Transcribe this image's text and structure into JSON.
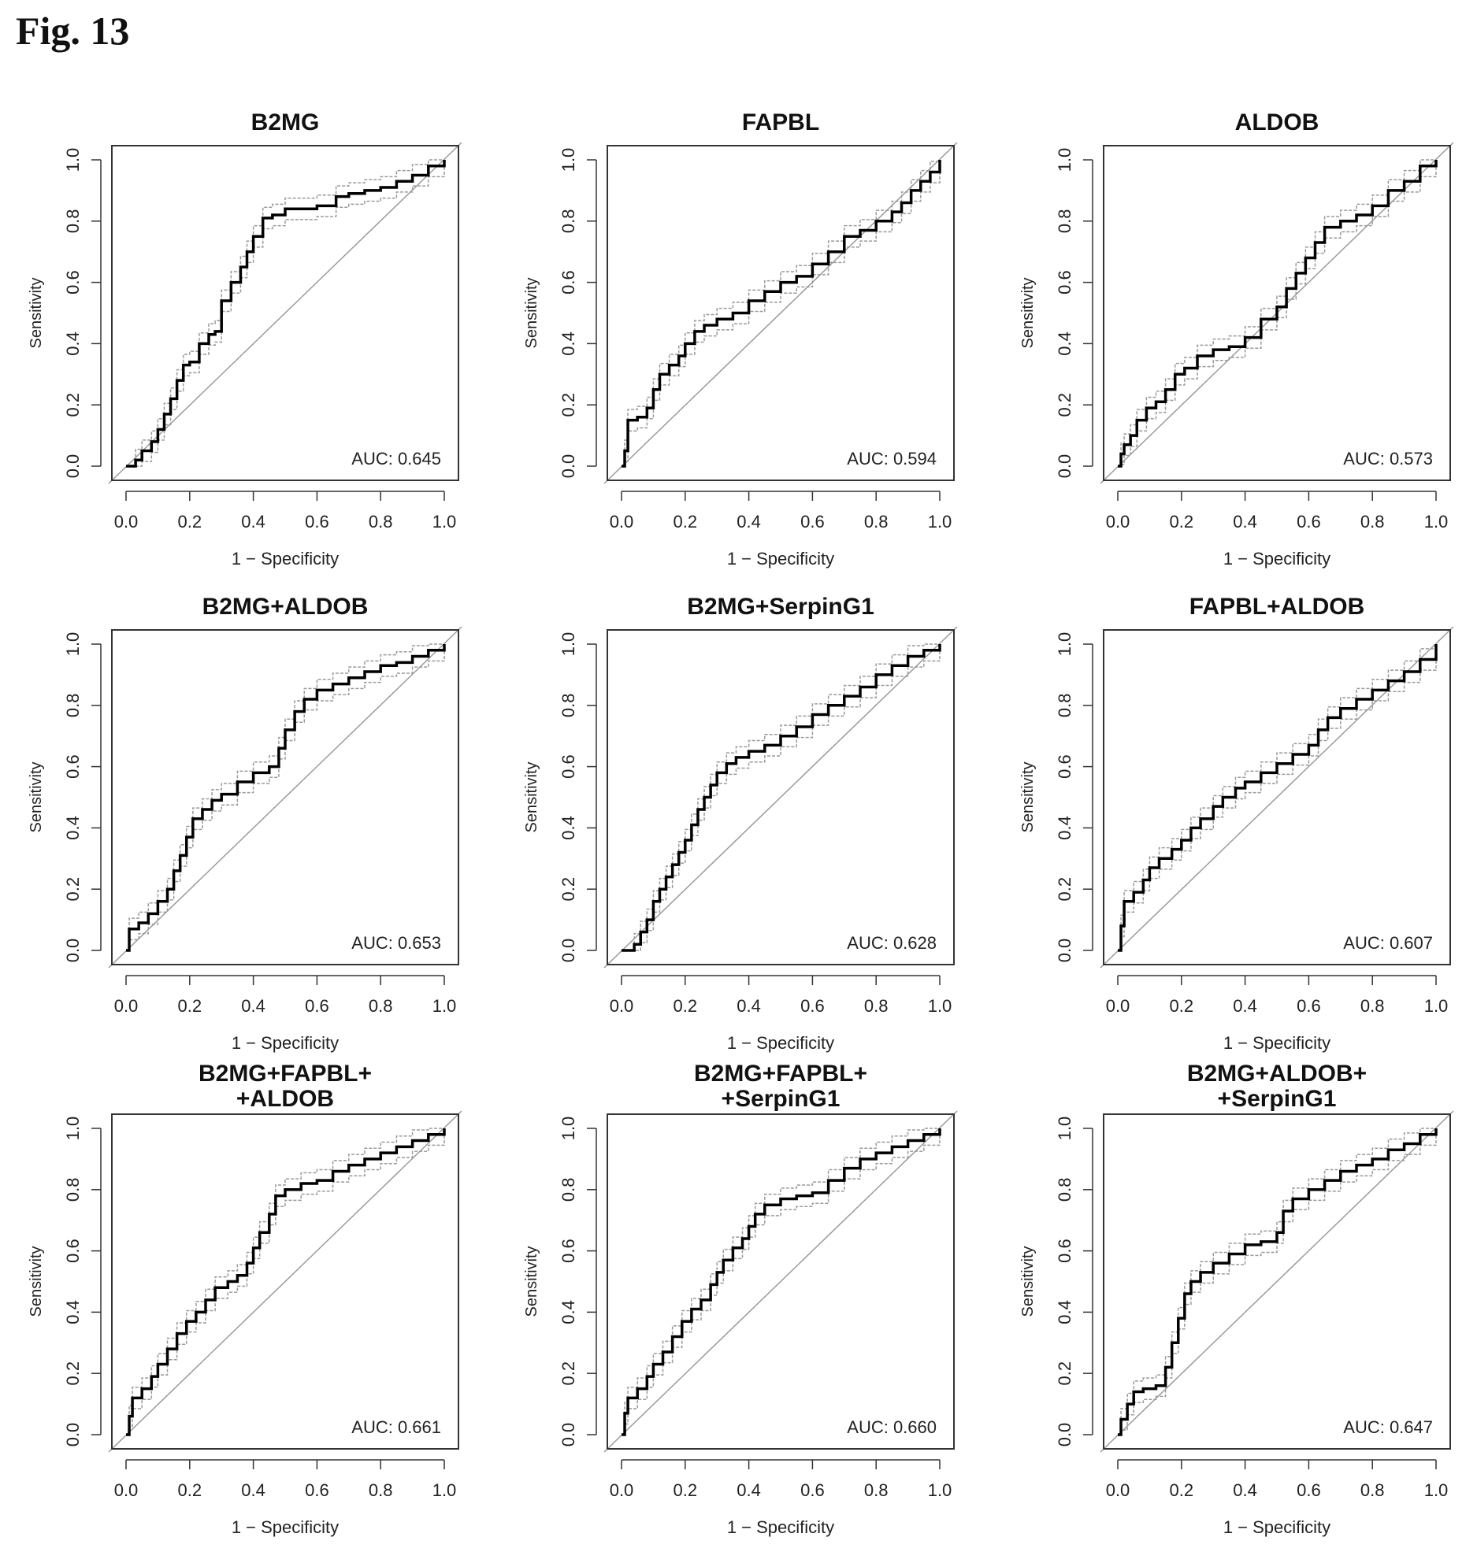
{
  "figure_label": "Fig. 13",
  "colors": {
    "roc": "#000000",
    "ci": "#9a9a9a",
    "diagonal": "#9a9a9a",
    "axis": "#333333"
  },
  "chart_data": [
    {
      "type": "line",
      "title": "B2MG",
      "xlabel": "1 − Specificity",
      "ylabel": "Sensitivity",
      "xlim": [
        0,
        1
      ],
      "ylim": [
        0,
        1
      ],
      "ticks": [
        "0.0",
        "0.2",
        "0.4",
        "0.6",
        "0.8",
        "1.0"
      ],
      "auc_label": "AUC: 0.645",
      "x": [
        0,
        0.03,
        0.05,
        0.08,
        0.1,
        0.12,
        0.14,
        0.16,
        0.18,
        0.2,
        0.23,
        0.26,
        0.28,
        0.3,
        0.33,
        0.36,
        0.38,
        0.4,
        0.43,
        0.46,
        0.5,
        0.55,
        0.6,
        0.66,
        0.7,
        0.75,
        0.8,
        0.85,
        0.9,
        0.95,
        1.0
      ],
      "y": [
        0,
        0.02,
        0.05,
        0.08,
        0.12,
        0.17,
        0.22,
        0.28,
        0.33,
        0.34,
        0.4,
        0.43,
        0.44,
        0.54,
        0.6,
        0.65,
        0.7,
        0.75,
        0.81,
        0.82,
        0.84,
        0.84,
        0.85,
        0.88,
        0.89,
        0.9,
        0.91,
        0.93,
        0.95,
        0.98,
        1.0
      ]
    },
    {
      "type": "line",
      "title": "FAPBL",
      "xlabel": "1 − Specificity",
      "ylabel": "Sensitivity",
      "xlim": [
        0,
        1
      ],
      "ylim": [
        0,
        1
      ],
      "ticks": [
        "0.0",
        "0.2",
        "0.4",
        "0.6",
        "0.8",
        "1.0"
      ],
      "auc_label": "AUC: 0.594",
      "x": [
        0,
        0.01,
        0.02,
        0.05,
        0.08,
        0.1,
        0.12,
        0.15,
        0.18,
        0.2,
        0.23,
        0.26,
        0.3,
        0.35,
        0.4,
        0.45,
        0.5,
        0.55,
        0.6,
        0.65,
        0.7,
        0.75,
        0.8,
        0.85,
        0.88,
        0.91,
        0.94,
        0.97,
        1.0
      ],
      "y": [
        0,
        0.05,
        0.15,
        0.16,
        0.19,
        0.25,
        0.3,
        0.33,
        0.36,
        0.4,
        0.44,
        0.46,
        0.48,
        0.5,
        0.54,
        0.57,
        0.6,
        0.62,
        0.66,
        0.7,
        0.75,
        0.77,
        0.8,
        0.83,
        0.86,
        0.9,
        0.93,
        0.96,
        1.0
      ]
    },
    {
      "type": "line",
      "title": "ALDOB",
      "xlabel": "1 − Specificity",
      "ylabel": "Sensitivity",
      "xlim": [
        0,
        1
      ],
      "ylim": [
        0,
        1
      ],
      "ticks": [
        "0.0",
        "0.2",
        "0.4",
        "0.6",
        "0.8",
        "1.0"
      ],
      "auc_label": "AUC: 0.573",
      "x": [
        0,
        0.01,
        0.02,
        0.04,
        0.06,
        0.09,
        0.12,
        0.15,
        0.18,
        0.21,
        0.25,
        0.3,
        0.35,
        0.4,
        0.45,
        0.5,
        0.53,
        0.56,
        0.59,
        0.62,
        0.65,
        0.7,
        0.75,
        0.8,
        0.85,
        0.9,
        0.95,
        1.0
      ],
      "y": [
        0,
        0.04,
        0.07,
        0.1,
        0.15,
        0.19,
        0.21,
        0.25,
        0.3,
        0.32,
        0.36,
        0.38,
        0.39,
        0.42,
        0.48,
        0.52,
        0.58,
        0.63,
        0.68,
        0.73,
        0.78,
        0.8,
        0.82,
        0.85,
        0.9,
        0.93,
        0.98,
        1.0
      ]
    },
    {
      "type": "line",
      "title": "B2MG+ALDOB",
      "xlabel": "1 − Specificity",
      "ylabel": "Sensitivity",
      "xlim": [
        0,
        1
      ],
      "ylim": [
        0,
        1
      ],
      "ticks": [
        "0.0",
        "0.2",
        "0.4",
        "0.6",
        "0.8",
        "1.0"
      ],
      "auc_label": "AUC: 0.653",
      "x": [
        0,
        0.01,
        0.04,
        0.07,
        0.1,
        0.13,
        0.15,
        0.17,
        0.19,
        0.21,
        0.24,
        0.27,
        0.3,
        0.35,
        0.4,
        0.45,
        0.48,
        0.5,
        0.53,
        0.56,
        0.6,
        0.65,
        0.7,
        0.75,
        0.8,
        0.85,
        0.9,
        0.95,
        1.0
      ],
      "y": [
        0,
        0.07,
        0.09,
        0.12,
        0.16,
        0.2,
        0.26,
        0.31,
        0.37,
        0.43,
        0.46,
        0.49,
        0.51,
        0.55,
        0.58,
        0.6,
        0.66,
        0.72,
        0.78,
        0.82,
        0.85,
        0.87,
        0.89,
        0.91,
        0.93,
        0.94,
        0.96,
        0.98,
        1.0
      ]
    },
    {
      "type": "line",
      "title": "B2MG+SerpinG1",
      "xlabel": "1 − Specificity",
      "ylabel": "Sensitivity",
      "xlim": [
        0,
        1
      ],
      "ylim": [
        0,
        1
      ],
      "ticks": [
        "0.0",
        "0.2",
        "0.4",
        "0.6",
        "0.8",
        "1.0"
      ],
      "auc_label": "AUC: 0.628",
      "x": [
        0,
        0.04,
        0.06,
        0.08,
        0.1,
        0.12,
        0.14,
        0.16,
        0.18,
        0.2,
        0.22,
        0.24,
        0.26,
        0.28,
        0.3,
        0.33,
        0.36,
        0.4,
        0.45,
        0.5,
        0.55,
        0.6,
        0.65,
        0.7,
        0.75,
        0.8,
        0.85,
        0.9,
        0.95,
        1.0
      ],
      "y": [
        0,
        0.02,
        0.06,
        0.1,
        0.16,
        0.2,
        0.24,
        0.28,
        0.32,
        0.36,
        0.41,
        0.46,
        0.5,
        0.54,
        0.58,
        0.61,
        0.63,
        0.65,
        0.67,
        0.7,
        0.73,
        0.77,
        0.8,
        0.83,
        0.86,
        0.9,
        0.93,
        0.96,
        0.98,
        1.0
      ]
    },
    {
      "type": "line",
      "title": "FAPBL+ALDOB",
      "xlabel": "1 − Specificity",
      "ylabel": "Sensitivity",
      "xlim": [
        0,
        1
      ],
      "ylim": [
        0,
        1
      ],
      "ticks": [
        "0.0",
        "0.2",
        "0.4",
        "0.6",
        "0.8",
        "1.0"
      ],
      "auc_label": "AUC: 0.607",
      "x": [
        0,
        0.01,
        0.02,
        0.05,
        0.08,
        0.1,
        0.13,
        0.17,
        0.2,
        0.23,
        0.26,
        0.3,
        0.33,
        0.37,
        0.4,
        0.45,
        0.5,
        0.55,
        0.6,
        0.63,
        0.66,
        0.7,
        0.75,
        0.8,
        0.85,
        0.9,
        0.95,
        1.0
      ],
      "y": [
        0,
        0.08,
        0.16,
        0.19,
        0.23,
        0.27,
        0.3,
        0.33,
        0.36,
        0.4,
        0.43,
        0.47,
        0.5,
        0.53,
        0.55,
        0.58,
        0.61,
        0.64,
        0.67,
        0.72,
        0.76,
        0.79,
        0.82,
        0.85,
        0.88,
        0.91,
        0.95,
        1.0
      ]
    },
    {
      "type": "line",
      "title": "B2MG+FAPBL+\n+ALDOB",
      "xlabel": "1 − Specificity",
      "ylabel": "Sensitivity",
      "xlim": [
        0,
        1
      ],
      "ylim": [
        0,
        1
      ],
      "ticks": [
        "0.0",
        "0.2",
        "0.4",
        "0.6",
        "0.8",
        "1.0"
      ],
      "auc_label": "AUC: 0.661",
      "x": [
        0,
        0.01,
        0.02,
        0.05,
        0.08,
        0.1,
        0.13,
        0.16,
        0.19,
        0.22,
        0.25,
        0.28,
        0.32,
        0.35,
        0.38,
        0.4,
        0.42,
        0.45,
        0.47,
        0.5,
        0.55,
        0.6,
        0.65,
        0.7,
        0.75,
        0.8,
        0.85,
        0.9,
        0.95,
        1.0
      ],
      "y": [
        0,
        0.06,
        0.12,
        0.15,
        0.19,
        0.23,
        0.28,
        0.33,
        0.37,
        0.4,
        0.44,
        0.48,
        0.5,
        0.52,
        0.56,
        0.61,
        0.66,
        0.72,
        0.78,
        0.8,
        0.82,
        0.83,
        0.86,
        0.88,
        0.9,
        0.92,
        0.94,
        0.96,
        0.98,
        1.0
      ]
    },
    {
      "type": "line",
      "title": "B2MG+FAPBL+\n+SerpinG1",
      "xlabel": "1 − Specificity",
      "ylabel": "Sensitivity",
      "xlim": [
        0,
        1
      ],
      "ylim": [
        0,
        1
      ],
      "ticks": [
        "0.0",
        "0.2",
        "0.4",
        "0.6",
        "0.8",
        "1.0"
      ],
      "auc_label": "AUC: 0.660",
      "x": [
        0,
        0.01,
        0.02,
        0.05,
        0.08,
        0.1,
        0.13,
        0.16,
        0.19,
        0.22,
        0.25,
        0.28,
        0.3,
        0.32,
        0.35,
        0.38,
        0.4,
        0.42,
        0.45,
        0.5,
        0.55,
        0.6,
        0.65,
        0.7,
        0.75,
        0.8,
        0.85,
        0.9,
        0.95,
        1.0
      ],
      "y": [
        0,
        0.07,
        0.12,
        0.15,
        0.19,
        0.23,
        0.27,
        0.32,
        0.37,
        0.41,
        0.44,
        0.49,
        0.53,
        0.57,
        0.61,
        0.64,
        0.68,
        0.72,
        0.75,
        0.77,
        0.78,
        0.79,
        0.83,
        0.87,
        0.9,
        0.92,
        0.94,
        0.96,
        0.98,
        1.0
      ]
    },
    {
      "type": "line",
      "title": "B2MG+ALDOB+\n+SerpinG1",
      "xlabel": "1 − Specificity",
      "ylabel": "Sensitivity",
      "xlim": [
        0,
        1
      ],
      "ylim": [
        0,
        1
      ],
      "ticks": [
        "0.0",
        "0.2",
        "0.4",
        "0.6",
        "0.8",
        "1.0"
      ],
      "auc_label": "AUC: 0.647",
      "x": [
        0,
        0.01,
        0.03,
        0.05,
        0.08,
        0.12,
        0.15,
        0.17,
        0.19,
        0.21,
        0.23,
        0.26,
        0.3,
        0.35,
        0.4,
        0.45,
        0.5,
        0.52,
        0.55,
        0.6,
        0.65,
        0.7,
        0.75,
        0.8,
        0.85,
        0.9,
        0.95,
        1.0
      ],
      "y": [
        0,
        0.05,
        0.1,
        0.14,
        0.15,
        0.16,
        0.22,
        0.3,
        0.38,
        0.46,
        0.5,
        0.53,
        0.56,
        0.59,
        0.62,
        0.63,
        0.66,
        0.73,
        0.77,
        0.8,
        0.83,
        0.86,
        0.88,
        0.9,
        0.93,
        0.95,
        0.98,
        1.0
      ]
    }
  ]
}
